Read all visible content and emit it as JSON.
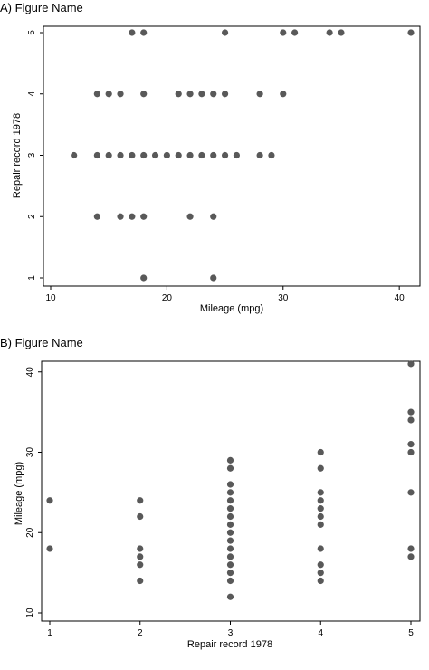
{
  "chart_data": [
    {
      "panel_label": "A)",
      "title": "Figure Name",
      "type": "scatter",
      "xlabel": "Mileage (mpg)",
      "ylabel": "Repair record 1978",
      "xlim": [
        10,
        41
      ],
      "ylim": [
        1,
        5
      ],
      "xticks": [
        10,
        20,
        30,
        40
      ],
      "yticks": [
        1,
        2,
        3,
        4,
        5
      ],
      "y_tick_labels_rotated": true,
      "grid": false,
      "marker_color": "#595959",
      "points": [
        [
          18,
          1
        ],
        [
          24,
          1
        ],
        [
          14,
          2
        ],
        [
          16,
          2
        ],
        [
          17,
          2
        ],
        [
          18,
          2
        ],
        [
          22,
          2
        ],
        [
          24,
          2
        ],
        [
          12,
          3
        ],
        [
          14,
          3
        ],
        [
          15,
          3
        ],
        [
          16,
          3
        ],
        [
          17,
          3
        ],
        [
          18,
          3
        ],
        [
          19,
          3
        ],
        [
          20,
          3
        ],
        [
          21,
          3
        ],
        [
          22,
          3
        ],
        [
          23,
          3
        ],
        [
          24,
          3
        ],
        [
          25,
          3
        ],
        [
          26,
          3
        ],
        [
          28,
          3
        ],
        [
          29,
          3
        ],
        [
          14,
          4
        ],
        [
          15,
          4
        ],
        [
          16,
          4
        ],
        [
          18,
          4
        ],
        [
          21,
          4
        ],
        [
          22,
          4
        ],
        [
          23,
          4
        ],
        [
          24,
          4
        ],
        [
          25,
          4
        ],
        [
          28,
          4
        ],
        [
          30,
          4
        ],
        [
          17,
          5
        ],
        [
          18,
          5
        ],
        [
          25,
          5
        ],
        [
          30,
          5
        ],
        [
          31,
          5
        ],
        [
          34,
          5
        ],
        [
          35,
          5
        ],
        [
          41,
          5
        ]
      ]
    },
    {
      "panel_label": "B)",
      "title": "Figure Name",
      "type": "scatter",
      "xlabel": "Repair record 1978",
      "ylabel": "Mileage (mpg)",
      "xlim": [
        1,
        5
      ],
      "ylim": [
        10,
        42
      ],
      "xticks": [
        1,
        2,
        3,
        4,
        5
      ],
      "yticks": [
        10,
        20,
        30,
        40
      ],
      "y_tick_labels_rotated": true,
      "grid": false,
      "marker_color": "#595959",
      "points": [
        [
          1,
          18
        ],
        [
          1,
          24
        ],
        [
          2,
          14
        ],
        [
          2,
          16
        ],
        [
          2,
          17
        ],
        [
          2,
          18
        ],
        [
          2,
          22
        ],
        [
          2,
          24
        ],
        [
          3,
          12
        ],
        [
          3,
          14
        ],
        [
          3,
          15
        ],
        [
          3,
          16
        ],
        [
          3,
          17
        ],
        [
          3,
          18
        ],
        [
          3,
          19
        ],
        [
          3,
          20
        ],
        [
          3,
          21
        ],
        [
          3,
          22
        ],
        [
          3,
          23
        ],
        [
          3,
          24
        ],
        [
          3,
          25
        ],
        [
          3,
          26
        ],
        [
          3,
          28
        ],
        [
          3,
          29
        ],
        [
          4,
          14
        ],
        [
          4,
          15
        ],
        [
          4,
          16
        ],
        [
          4,
          18
        ],
        [
          4,
          21
        ],
        [
          4,
          22
        ],
        [
          4,
          23
        ],
        [
          4,
          24
        ],
        [
          4,
          25
        ],
        [
          4,
          28
        ],
        [
          4,
          30
        ],
        [
          5,
          17
        ],
        [
          5,
          18
        ],
        [
          5,
          25
        ],
        [
          5,
          30
        ],
        [
          5,
          31
        ],
        [
          5,
          34
        ],
        [
          5,
          35
        ],
        [
          5,
          41
        ]
      ]
    }
  ]
}
